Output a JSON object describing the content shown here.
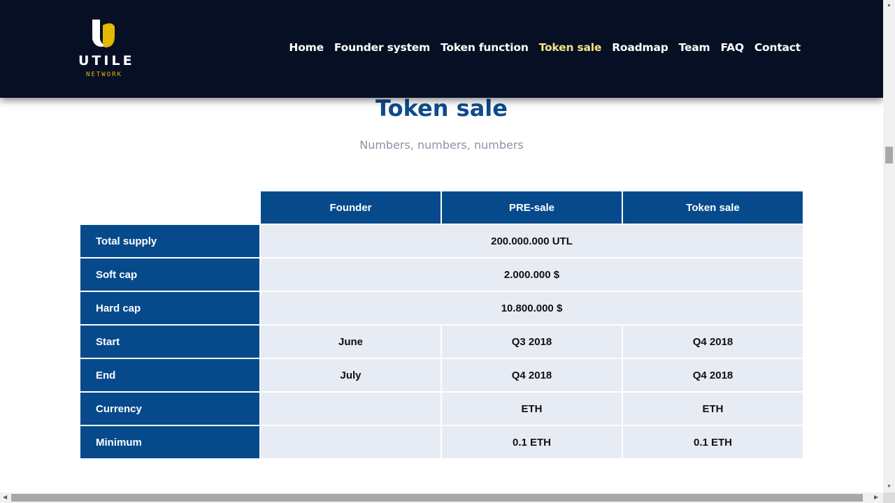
{
  "header": {
    "logo_word": "UTILE",
    "logo_sub": "NETWORK",
    "nav": [
      {
        "label": "Home"
      },
      {
        "label": "Founder system"
      },
      {
        "label": "Token function"
      },
      {
        "label": "Token sale",
        "active": true
      },
      {
        "label": "Roadmap"
      },
      {
        "label": "Team"
      },
      {
        "label": "FAQ"
      },
      {
        "label": "Contact"
      }
    ]
  },
  "section": {
    "title": "Token sale",
    "subtitle": "Numbers, numbers, numbers"
  },
  "table": {
    "columns": [
      "Founder",
      "PRE-sale",
      "Token sale"
    ],
    "rows": [
      {
        "label": "Total supply",
        "merged": "200.000.000 UTL"
      },
      {
        "label": "Soft cap",
        "merged": "2.000.000 $"
      },
      {
        "label": "Hard cap",
        "merged": "10.800.000 $"
      },
      {
        "label": "Start",
        "cells": [
          "June",
          "Q3 2018",
          "Q4 2018"
        ]
      },
      {
        "label": "End",
        "cells": [
          "July",
          "Q4 2018",
          "Q4 2018"
        ]
      },
      {
        "label": "Currency",
        "cells": [
          "",
          "ETH",
          "ETH"
        ]
      },
      {
        "label": "Minimum",
        "cells": [
          "",
          "0.1 ETH",
          "0.1 ETH"
        ]
      }
    ]
  },
  "colors": {
    "header_bg": "#060f24",
    "accent_yellow": "#f3e585",
    "table_blue": "#064a8c",
    "cell_bg": "#e6ebf4",
    "title_blue": "#0f4b8b"
  },
  "icons": {
    "logo": "utile-u-logo-icon",
    "scroll_up": "scroll-up-arrow-icon",
    "scroll_down": "scroll-down-arrow-icon",
    "scroll_left": "scroll-left-arrow-icon",
    "scroll_right": "scroll-right-arrow-icon"
  }
}
